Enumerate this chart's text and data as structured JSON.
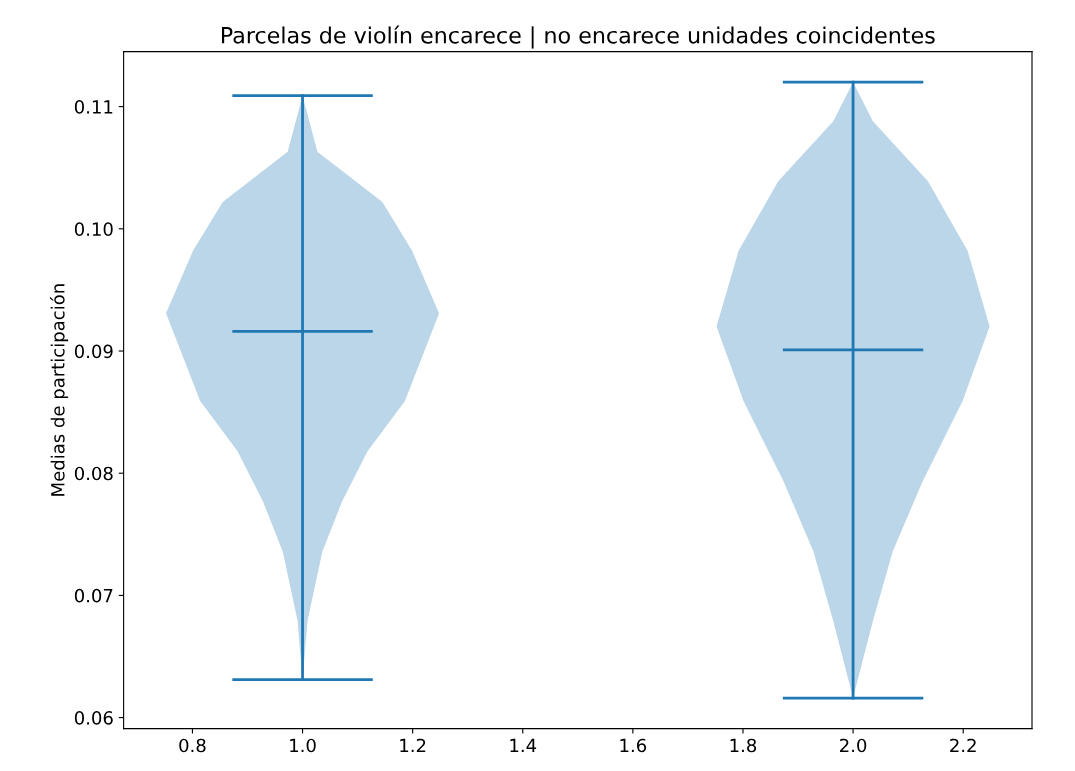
{
  "chart_data": {
    "type": "line",
    "title": "Parcelas de violín encarece | no encarece unidades coincidentes",
    "ylabel": "Medias de participación",
    "series": [
      {
        "type": "area",
        "color": "#bbd6e8",
        "x": [
          1.0,
          0.973,
          0.855,
          0.801,
          0.752,
          0.814,
          0.882,
          0.928,
          0.964,
          0.991,
          1.0,
          1.009,
          1.036,
          1.072,
          1.118,
          1.186,
          1.248,
          1.199,
          1.145,
          1.027,
          1.0
        ],
        "values": [
          0.1109,
          0.1063,
          0.1022,
          0.0982,
          0.0931,
          0.0859,
          0.0818,
          0.0777,
          0.0736,
          0.0679,
          0.0631,
          0.0679,
          0.0736,
          0.0777,
          0.0818,
          0.0859,
          0.0931,
          0.0982,
          0.1022,
          0.1063,
          0.1109
        ]
      },
      {
        "type": "area",
        "color": "#bbd6e8",
        "x": [
          2.0,
          1.964,
          1.864,
          1.792,
          1.752,
          1.801,
          1.873,
          1.928,
          1.964,
          2.0,
          2.036,
          2.072,
          2.127,
          2.199,
          2.248,
          2.208,
          2.136,
          2.036,
          2.0
        ],
        "values": [
          0.112,
          0.1088,
          0.1039,
          0.0982,
          0.092,
          0.0859,
          0.0794,
          0.0736,
          0.0679,
          0.0616,
          0.0679,
          0.0736,
          0.0794,
          0.0859,
          0.092,
          0.0982,
          0.1039,
          0.1088,
          0.112
        ]
      },
      {
        "color": "#1f77b4",
        "x": [
          1.0,
          1.0
        ],
        "values": [
          0.0631,
          0.1109
        ]
      },
      {
        "color": "#1f77b4",
        "x": [
          0.875,
          1.125
        ],
        "values": [
          0.0631,
          0.0631
        ]
      },
      {
        "color": "#1f77b4",
        "x": [
          0.875,
          1.125
        ],
        "values": [
          0.0916,
          0.0916
        ]
      },
      {
        "color": "#1f77b4",
        "x": [
          0.875,
          1.125
        ],
        "values": [
          0.1109,
          0.1109
        ]
      },
      {
        "color": "#1f77b4",
        "x": [
          2.0,
          2.0
        ],
        "values": [
          0.0616,
          0.112
        ]
      },
      {
        "color": "#1f77b4",
        "x": [
          1.875,
          2.125
        ],
        "values": [
          0.0616,
          0.0616
        ]
      },
      {
        "color": "#1f77b4",
        "x": [
          1.875,
          2.125
        ],
        "values": [
          0.0901,
          0.0901
        ]
      },
      {
        "color": "#1f77b4",
        "x": [
          1.875,
          2.125
        ],
        "values": [
          0.112,
          0.112
        ]
      }
    ],
    "xlim": [
      0.675,
      2.325
    ],
    "xticks": [
      0.8,
      {
        "value": 1,
        "label": "1.0"
      },
      1.2,
      1.4,
      1.6,
      1.8,
      {
        "value": 2,
        "label": "2.0"
      },
      2.2
    ],
    "ylim": [
      0.0591,
      0.1145
    ],
    "yticks": [
      0.06,
      0.07,
      0.08,
      0.09,
      {
        "value": 0.1,
        "label": "0.10"
      },
      0.11
    ]
  }
}
